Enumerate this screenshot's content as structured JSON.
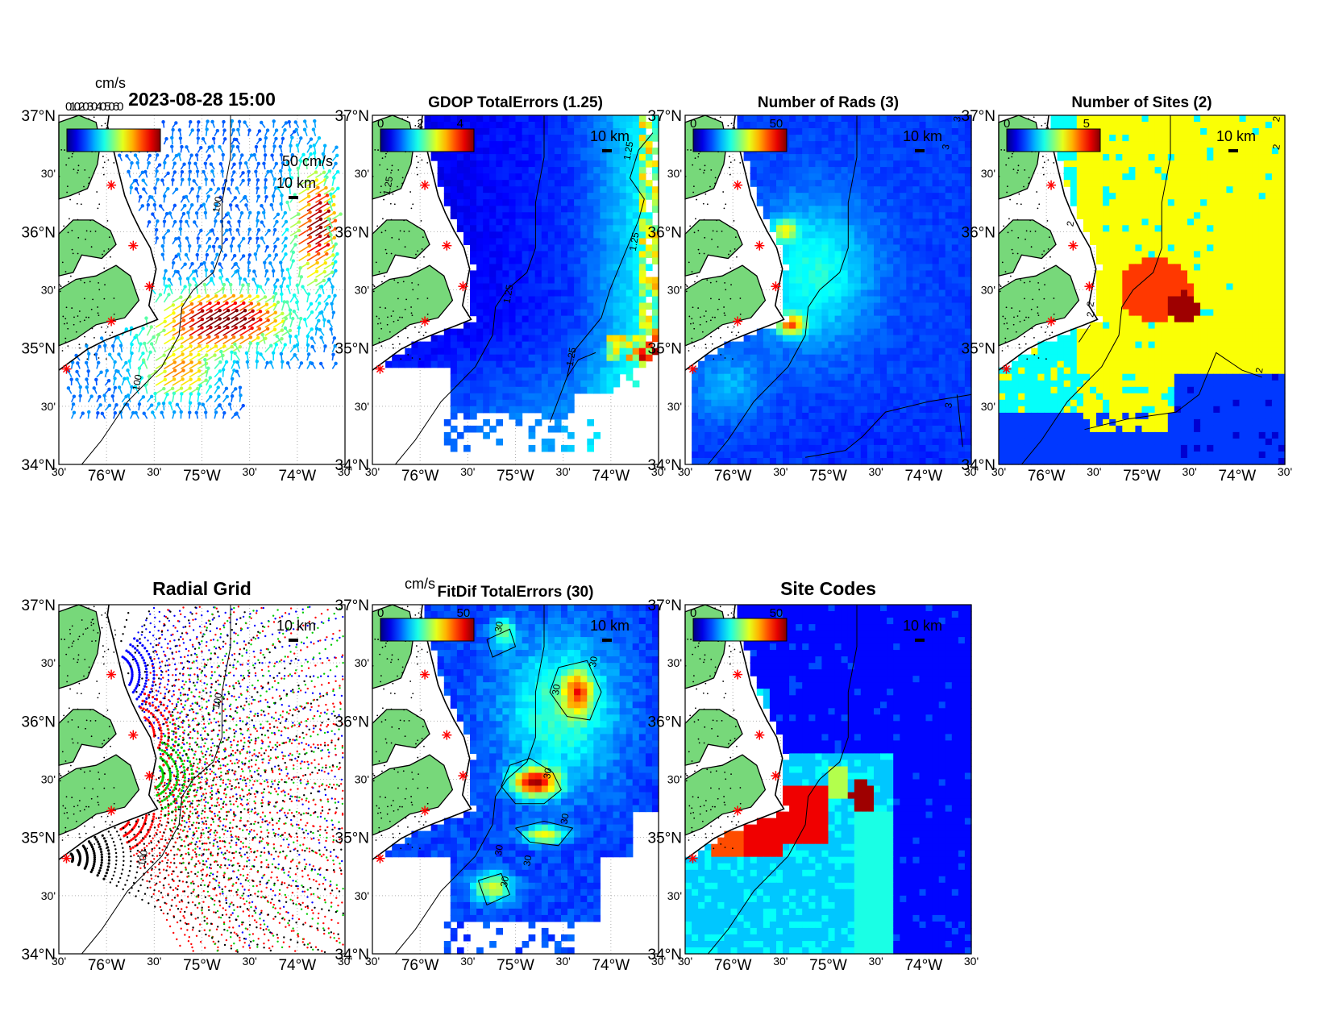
{
  "colors": {
    "land": "#77d87a",
    "coast": "#000000",
    "site_marker": "#ff0000",
    "grid": "#b0b0b0"
  },
  "panels": [
    {
      "id": "currents",
      "title": "2023-08-28 15:00",
      "title_size": "big",
      "type": "vectors",
      "colorbar": {
        "unit": "cm/s",
        "ticks": [],
        "overlay_text": "0102030405060"
      },
      "vector_scale_label": "50 cm/s",
      "scale_label": "10 km",
      "contour_labels": [
        "100",
        "100"
      ]
    },
    {
      "id": "gdop",
      "title": "GDOP TotalErrors (1.25)",
      "title_size": "small",
      "type": "field_gdop",
      "colorbar": {
        "unit": "",
        "ticks": [
          "0",
          "2",
          "4"
        ]
      },
      "scale_label": "10 km",
      "contour_labels": [
        "1.25",
        "1.25",
        "1.25",
        "1.25",
        "1.25"
      ]
    },
    {
      "id": "rads",
      "title": "Number of Rads (3)",
      "title_size": "small",
      "type": "field_rads",
      "colorbar": {
        "unit": "",
        "ticks": [
          "0",
          "50"
        ]
      },
      "scale_label": "10 km",
      "contour_labels": [
        "3",
        "3",
        "3"
      ]
    },
    {
      "id": "sites",
      "title": "Number of Sites (2)",
      "title_size": "small",
      "type": "field_sites",
      "colorbar": {
        "unit": "",
        "ticks": [
          "0",
          "5"
        ]
      },
      "scale_label": "10 km",
      "contour_labels": [
        "2",
        "2",
        "2",
        "2",
        "2",
        "2"
      ]
    },
    {
      "id": "radial",
      "title": "Radial Grid",
      "title_size": "big",
      "type": "radial",
      "colorbar": null,
      "scale_label": "10 km",
      "contour_labels": [
        "100",
        "100"
      ]
    },
    {
      "id": "fitdif",
      "title": "FitDif TotalErrors (30)",
      "title_size": "small",
      "type": "field_fitdif",
      "colorbar": {
        "unit": "cm/s",
        "ticks": [
          "0",
          "50"
        ]
      },
      "scale_label": "10 km",
      "contour_labels": [
        "30",
        "30",
        "30",
        "30",
        "30",
        "30",
        "30",
        "30"
      ]
    },
    {
      "id": "codes",
      "title": "Site Codes",
      "title_size": "big",
      "type": "field_codes",
      "colorbar": {
        "unit": "",
        "ticks": [
          "0",
          "50"
        ]
      },
      "scale_label": "10 km",
      "contour_labels": []
    }
  ],
  "axes": {
    "lat_labels": [
      "37°N",
      "30'",
      "36°N",
      "30'",
      "35°N",
      "30'",
      "34°N"
    ],
    "lon_labels": [
      "30'",
      "76°W",
      "30'",
      "75°W",
      "30'",
      "74°W",
      "30'"
    ],
    "lat_range": [
      34,
      37
    ],
    "lon_range": [
      -76.5,
      -73.5
    ]
  },
  "sites": [
    {
      "lon": -75.95,
      "lat": 36.4
    },
    {
      "lon": -75.72,
      "lat": 35.88
    },
    {
      "lon": -75.55,
      "lat": 35.53
    },
    {
      "lon": -75.95,
      "lat": 35.23
    },
    {
      "lon": -76.42,
      "lat": 34.82
    }
  ]
}
